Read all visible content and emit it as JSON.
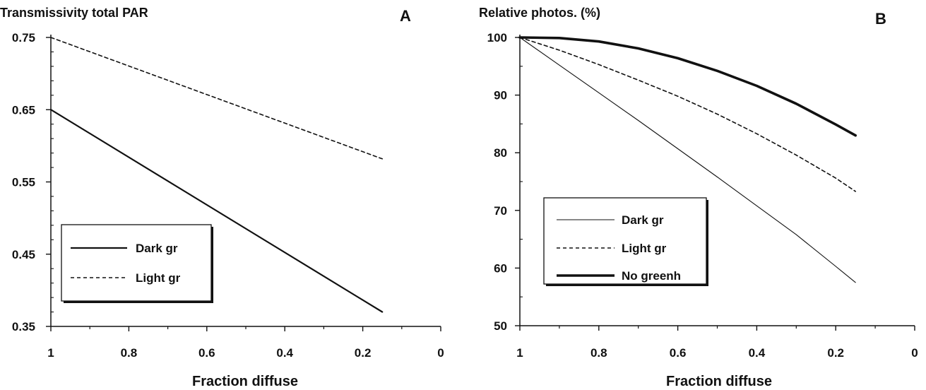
{
  "chart_data": [
    {
      "panel": "A",
      "type": "line",
      "title": "Transmissivity total PAR",
      "xlabel": "Fraction diffuse",
      "ylabel": "Transmissivity total PAR",
      "xlim": [
        1,
        0
      ],
      "ylim": [
        0.35,
        0.75
      ],
      "x_ticks": [
        "1",
        "0.8",
        "0.6",
        "0.4",
        "0.2",
        "0"
      ],
      "y_ticks": [
        "0.75",
        "0.65",
        "0.55",
        "0.45",
        "0.35"
      ],
      "grid": false,
      "legend_position": "bottom-left",
      "series": [
        {
          "name": "Dark gr",
          "style": "solid",
          "x": [
            1,
            0.15
          ],
          "y": [
            0.65,
            0.37
          ]
        },
        {
          "name": "Light gr",
          "style": "dotted",
          "x": [
            1,
            0.15
          ],
          "y": [
            0.75,
            0.582
          ]
        }
      ]
    },
    {
      "panel": "B",
      "type": "line",
      "title": "Relative photos. (%)",
      "xlabel": "Fraction diffuse",
      "ylabel": "Relative photos. (%)",
      "xlim": [
        1,
        0
      ],
      "ylim": [
        50,
        100
      ],
      "x_ticks": [
        "1",
        "0.8",
        "0.6",
        "0.4",
        "0.2",
        "0"
      ],
      "y_ticks": [
        "100",
        "90",
        "80",
        "70",
        "60",
        "50"
      ],
      "grid": false,
      "legend_position": "bottom-left",
      "series": [
        {
          "name": "Dark gr",
          "style": "thin",
          "x": [
            1,
            0.9,
            0.8,
            0.7,
            0.6,
            0.5,
            0.4,
            0.3,
            0.2,
            0.15
          ],
          "y": [
            100,
            95.2,
            90.4,
            85.6,
            80.7,
            75.8,
            70.8,
            65.8,
            60.3,
            57.5
          ]
        },
        {
          "name": "Light gr",
          "style": "dotted",
          "x": [
            1,
            0.9,
            0.8,
            0.7,
            0.6,
            0.5,
            0.4,
            0.3,
            0.2,
            0.15
          ],
          "y": [
            100,
            97.8,
            95.3,
            92.6,
            89.8,
            86.7,
            83.3,
            79.6,
            75.6,
            73.3
          ]
        },
        {
          "name": "No greenh",
          "style": "thick",
          "x": [
            1,
            0.9,
            0.8,
            0.7,
            0.6,
            0.5,
            0.4,
            0.3,
            0.2,
            0.15
          ],
          "y": [
            100,
            99.9,
            99.3,
            98.1,
            96.4,
            94.2,
            91.6,
            88.5,
            84.9,
            83
          ]
        }
      ]
    }
  ]
}
